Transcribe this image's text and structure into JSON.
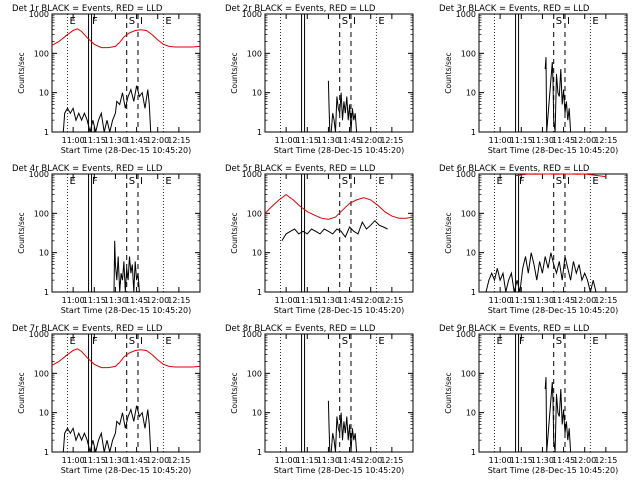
{
  "colors": {
    "events": "#000000",
    "lld": "#e00000",
    "background": "#ffffff"
  },
  "common": {
    "ylabel": "Counts/sec",
    "xlabel": "Start Time (28-Dec-15 10:45:20)",
    "x_ticks": [
      "11:00",
      "11:15",
      "11:30",
      "11:45",
      "12:00",
      "12:15"
    ],
    "x_tick_minutes": [
      60,
      75,
      90,
      105,
      120,
      135
    ],
    "y_ticks": [
      "1",
      "10",
      "100",
      "1000"
    ],
    "y_tick_values": [
      1,
      10,
      100,
      1000
    ],
    "xlim_minutes": [
      45,
      150
    ],
    "ylim": [
      1,
      1000
    ],
    "markers": {
      "E_start": {
        "label": "E",
        "minute": 56
      },
      "F": {
        "label": "F",
        "minute": 72
      },
      "S": {
        "label": "S",
        "minute": 98
      },
      "I": {
        "label": "I",
        "minute": 106
      },
      "E_end": {
        "label": "E",
        "minute": 124
      }
    }
  },
  "chart_data": [
    {
      "type": "line",
      "title": "Det 1r BLACK = Events, RED = LLD",
      "xlabel": "Start Time (28-Dec-15 10:45:20)",
      "ylabel": "Counts/sec",
      "markers_shown": [
        "E",
        "F",
        "S",
        "I",
        "E"
      ],
      "series": [
        {
          "name": "LLD",
          "color": "#e00000",
          "x": [
            45,
            50,
            55,
            60,
            63,
            66,
            70,
            75,
            80,
            85,
            90,
            93,
            96,
            100,
            104,
            108,
            112,
            116,
            120,
            124,
            128,
            132,
            136,
            140,
            145,
            150
          ],
          "y": [
            160,
            200,
            280,
            380,
            420,
            360,
            250,
            170,
            140,
            140,
            150,
            190,
            260,
            330,
            380,
            400,
            380,
            300,
            220,
            170,
            150,
            145,
            145,
            145,
            145,
            150
          ]
        },
        {
          "name": "Events",
          "color": "#000000",
          "x": [
            53,
            54,
            56,
            58,
            60,
            62,
            64,
            66,
            68,
            70,
            72,
            74,
            76,
            78,
            80,
            82,
            84,
            86,
            88,
            90,
            91,
            93,
            95,
            97,
            99,
            101,
            103,
            105,
            107,
            109,
            111,
            113,
            114,
            115
          ],
          "y": [
            1,
            3,
            4,
            3,
            4,
            2,
            3,
            2,
            3,
            2,
            1,
            2,
            1,
            2,
            3,
            1,
            2,
            1,
            2,
            3,
            6,
            5,
            10,
            4,
            8,
            12,
            6,
            15,
            8,
            10,
            4,
            12,
            5,
            1
          ]
        }
      ]
    },
    {
      "type": "line",
      "title": "Det 2r BLACK = Events, RED = LLD",
      "xlabel": "Start Time (28-Dec-15 10:45:20)",
      "ylabel": "Counts/sec",
      "markers_shown": [
        "S",
        "I",
        "E"
      ],
      "series": [
        {
          "name": "Events",
          "color": "#000000",
          "x": [
            90,
            90.5,
            91,
            92,
            93,
            94,
            95,
            96,
            97,
            98,
            99,
            100,
            101,
            102,
            103,
            104,
            105,
            106,
            107,
            108,
            109,
            110,
            111
          ],
          "y": [
            20,
            4,
            1,
            1,
            3,
            2,
            1,
            8,
            4,
            3,
            10,
            2,
            6,
            3,
            8,
            2,
            5,
            1,
            4,
            2,
            3,
            1,
            1
          ]
        }
      ]
    },
    {
      "type": "line",
      "title": "Det 3r BLACK = Events, RED = LLD",
      "xlabel": "Start Time (28-Dec-15 10:45:20)",
      "ylabel": "Counts/sec",
      "markers_shown": [
        "S",
        "I",
        "E"
      ],
      "series": [
        {
          "name": "Events",
          "color": "#000000",
          "x": [
            92,
            92.5,
            93,
            97,
            97.5,
            98,
            99,
            100,
            101,
            102,
            103,
            104,
            105,
            106,
            107,
            108,
            109,
            110
          ],
          "y": [
            40,
            80,
            1,
            60,
            20,
            2,
            1,
            30,
            10,
            8,
            40,
            5,
            12,
            3,
            6,
            2,
            4,
            1
          ]
        }
      ]
    },
    {
      "type": "line",
      "title": "Det 4r BLACK = Events, RED = LLD",
      "xlabel": "Start Time (28-Dec-15 10:45:20)",
      "ylabel": "Counts/sec",
      "markers_shown": [
        "E",
        "F",
        "S",
        "I",
        "E"
      ],
      "series": [
        {
          "name": "Events",
          "color": "#000000",
          "x": [
            89,
            89.5,
            90,
            91,
            92,
            93,
            94,
            95,
            96,
            97,
            98,
            99,
            100,
            101,
            102,
            103,
            104,
            105,
            106,
            107
          ],
          "y": [
            1,
            20,
            5,
            2,
            8,
            1,
            3,
            2,
            6,
            1,
            4,
            2,
            8,
            3,
            5,
            1,
            6,
            2,
            3,
            1
          ]
        }
      ]
    },
    {
      "type": "line",
      "title": "Det 5r BLACK = Events, RED = LLD",
      "xlabel": "Start Time (28-Dec-15 10:45:20)",
      "ylabel": "Counts/sec",
      "markers_shown": [
        "S",
        "I",
        "E"
      ],
      "series": [
        {
          "name": "LLD",
          "color": "#e00000",
          "x": [
            45,
            50,
            55,
            60,
            65,
            70,
            75,
            80,
            85,
            90,
            95,
            100,
            105,
            110,
            115,
            120,
            125,
            130,
            135,
            140,
            145,
            150
          ],
          "y": [
            100,
            150,
            220,
            300,
            220,
            150,
            110,
            90,
            75,
            70,
            80,
            120,
            180,
            220,
            250,
            220,
            160,
            110,
            85,
            75,
            75,
            80
          ]
        },
        {
          "name": "Events",
          "color": "#000000",
          "x": [
            57,
            60,
            63,
            66,
            69,
            72,
            75,
            78,
            81,
            84,
            87,
            90,
            93,
            96,
            99,
            102,
            105,
            108,
            111,
            114,
            117,
            120,
            123,
            126,
            129,
            132
          ],
          "y": [
            20,
            30,
            35,
            40,
            30,
            35,
            30,
            40,
            35,
            30,
            40,
            35,
            30,
            40,
            35,
            25,
            45,
            35,
            30,
            60,
            40,
            50,
            65,
            50,
            45,
            40
          ]
        }
      ]
    },
    {
      "type": "line",
      "title": "Det 6r BLACK = Events, RED = LLD",
      "xlabel": "Start Time (28-Dec-15 10:45:20)",
      "ylabel": "Counts/sec",
      "markers_shown": [
        "E",
        "F",
        "S",
        "I",
        "E"
      ],
      "series": [
        {
          "name": "LLD",
          "color": "#e00000",
          "x": [
            71,
            75,
            80,
            85,
            90,
            95,
            100,
            105,
            110,
            115,
            120,
            125,
            130,
            135
          ],
          "y": [
            900,
            950,
            1000,
            980,
            1000,
            1000,
            990,
            1000,
            1000,
            980,
            1000,
            950,
            900,
            850
          ]
        },
        {
          "name": "Events",
          "color": "#000000",
          "x": [
            50,
            52,
            54,
            56,
            58,
            60,
            62,
            64,
            66,
            68,
            70,
            72,
            74,
            76,
            78,
            80,
            82,
            84,
            86,
            88,
            90,
            92,
            94,
            96,
            98,
            100,
            102,
            104,
            106,
            108,
            110,
            112,
            114,
            116,
            118,
            120,
            122,
            124,
            126,
            128,
            130
          ],
          "y": [
            1,
            2,
            3,
            2,
            4,
            2,
            3,
            1,
            2,
            3,
            1,
            2,
            1,
            4,
            8,
            3,
            10,
            5,
            2,
            6,
            3,
            8,
            4,
            10,
            5,
            3,
            6,
            2,
            8,
            4,
            2,
            6,
            3,
            5,
            2,
            3,
            2,
            1,
            2,
            1,
            1
          ]
        }
      ]
    },
    {
      "type": "line",
      "title": "Det 7r BLACK = Events, RED = LLD",
      "xlabel": "Start Time (28-Dec-15 10:45:20)",
      "ylabel": "Counts/sec",
      "markers_shown": [
        "E",
        "F",
        "S",
        "I",
        "E"
      ],
      "series": [
        {
          "name": "LLD",
          "color": "#e00000",
          "x": [
            45,
            50,
            55,
            60,
            63,
            66,
            70,
            75,
            80,
            85,
            90,
            93,
            96,
            100,
            104,
            108,
            112,
            116,
            120,
            124,
            128,
            132,
            136,
            140,
            145,
            150
          ],
          "y": [
            160,
            200,
            280,
            380,
            420,
            360,
            250,
            170,
            140,
            140,
            150,
            190,
            260,
            330,
            380,
            400,
            380,
            300,
            220,
            170,
            150,
            145,
            145,
            145,
            145,
            150
          ]
        },
        {
          "name": "Events",
          "color": "#000000",
          "x": [
            53,
            54,
            56,
            58,
            60,
            62,
            64,
            66,
            68,
            70,
            72,
            74,
            76,
            78,
            80,
            82,
            84,
            86,
            88,
            90,
            91,
            93,
            95,
            97,
            99,
            101,
            103,
            105,
            107,
            109,
            111,
            113,
            114,
            115
          ],
          "y": [
            1,
            3,
            4,
            3,
            4,
            2,
            3,
            2,
            3,
            2,
            1,
            2,
            1,
            2,
            3,
            1,
            2,
            1,
            2,
            3,
            6,
            5,
            10,
            4,
            8,
            12,
            6,
            15,
            8,
            10,
            4,
            12,
            5,
            1
          ]
        }
      ]
    },
    {
      "type": "line",
      "title": "Det 8r BLACK = Events, RED = LLD",
      "xlabel": "Start Time (28-Dec-15 10:45:20)",
      "ylabel": "Counts/sec",
      "markers_shown": [
        "S",
        "E"
      ],
      "series": [
        {
          "name": "Events",
          "color": "#000000",
          "x": [
            90,
            90.5,
            91,
            92,
            93,
            94,
            95,
            96,
            97,
            98,
            99,
            100,
            101,
            102,
            103,
            104,
            105,
            106,
            107,
            108,
            109,
            110,
            111
          ],
          "y": [
            20,
            4,
            1,
            1,
            3,
            2,
            1,
            8,
            4,
            3,
            10,
            2,
            6,
            3,
            8,
            2,
            5,
            1,
            4,
            2,
            3,
            1,
            1
          ]
        }
      ]
    },
    {
      "type": "line",
      "title": "Det 9r BLACK = Events, RED = LLD",
      "xlabel": "Start Time (28-Dec-15 10:45:20)",
      "ylabel": "Counts/sec",
      "markers_shown": [
        "E",
        "F",
        "S",
        "E"
      ],
      "series": [
        {
          "name": "Events",
          "color": "#000000",
          "x": [
            92,
            92.5,
            93,
            97,
            97.5,
            98,
            99,
            100,
            101,
            102,
            103,
            104,
            105,
            106,
            107,
            108,
            109,
            110
          ],
          "y": [
            40,
            80,
            1,
            60,
            20,
            2,
            1,
            30,
            10,
            8,
            40,
            5,
            12,
            3,
            6,
            2,
            4,
            1
          ]
        }
      ]
    }
  ]
}
